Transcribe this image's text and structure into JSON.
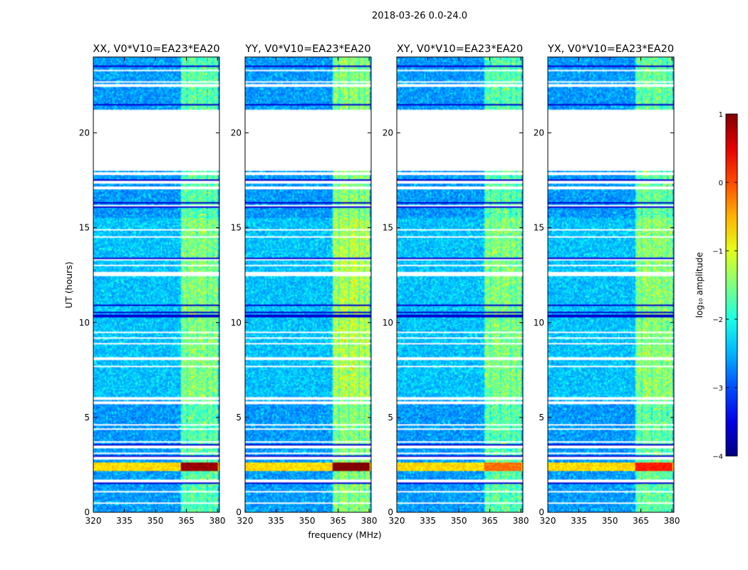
{
  "chart_data": {
    "type": "heatmap",
    "title": "2018-03-26 0.0-24.0",
    "xlabel": "frequency (MHz)",
    "ylabel": "UT (hours)",
    "xlim": [
      320,
      381
    ],
    "ylim": [
      0,
      24
    ],
    "xticks": [
      "320",
      "335",
      "350",
      "365",
      "380"
    ],
    "yticks": [
      "0",
      "5",
      "10",
      "15",
      "20"
    ],
    "xtick_values": [
      320,
      335,
      350,
      365,
      380
    ],
    "ytick_values": [
      0,
      5,
      10,
      15,
      20
    ],
    "panels": [
      {
        "title": "XX, V0*V10=EA23*EA20",
        "band_strength": 0.55,
        "rfi_peak": 1.15
      },
      {
        "title": "YY, V0*V10=EA23*EA20",
        "band_strength": 0.75,
        "rfi_peak": 1.2
      },
      {
        "title": "XY, V0*V10=EA23*EA20",
        "band_strength": 0.55,
        "rfi_peak": 0.9
      },
      {
        "title": "YX, V0*V10=EA23*EA20",
        "band_strength": 0.6,
        "rfi_peak": 1.0
      }
    ],
    "colorbar": {
      "label": "log₁₀ amplitude",
      "range": [
        -4,
        1
      ],
      "ticks": [
        "1",
        "0",
        "−1",
        "−2",
        "−3",
        "−4"
      ],
      "tick_values": [
        1,
        0,
        -1,
        -2,
        -3,
        -4
      ],
      "colormap": "jet"
    },
    "flagged_ut_ranges": [
      [
        18.0,
        21.2
      ],
      [
        16.1,
        16.2
      ]
    ],
    "flag_lines_ut": [
      0.5,
      1.1,
      1.65,
      2.85,
      3.1,
      3.4,
      3.5,
      3.7,
      4.4,
      4.6,
      5.75,
      5.8,
      6.0,
      7.7,
      8.1,
      8.9,
      9.2,
      9.5,
      12.5,
      12.6,
      13.0,
      13.3,
      14.5,
      14.9,
      17.1,
      17.4,
      17.85,
      22.5,
      22.7,
      23.3
    ],
    "dark_lines_ut": [
      1.55,
      2.95,
      3.55,
      6.0,
      7.35,
      8.1,
      10.3,
      10.4,
      10.55,
      10.9,
      13.4,
      14.1,
      16.1,
      16.3,
      17.5,
      18.0,
      21.2,
      21.5,
      22.2,
      23.5
    ],
    "rfi_band_ut": [
      2.2,
      2.6
    ],
    "signal_band_mhz": [
      362,
      380
    ],
    "signal_columns_mhz": [
      364,
      366.5,
      369,
      371.5,
      374,
      376.5,
      379
    ]
  }
}
